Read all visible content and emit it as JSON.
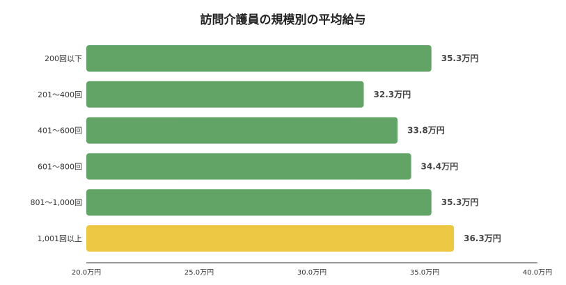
{
  "chart_data": {
    "type": "bar",
    "orientation": "horizontal",
    "title": "訪問介護員の規模別の平均給与",
    "xlabel": "",
    "ylabel": "",
    "unit": "万円",
    "categories": [
      "200回以下",
      "201～400回",
      "401～600回",
      "601～800回",
      "801～1,000回",
      "1,001回以上"
    ],
    "values": [
      35.3,
      32.3,
      33.8,
      34.4,
      35.3,
      36.3
    ],
    "value_labels": [
      "35.3万円",
      "32.3万円",
      "33.8万円",
      "34.4万円",
      "35.3万円",
      "36.3万円"
    ],
    "xlim": [
      20,
      40
    ],
    "x_ticks": [
      20,
      25,
      30,
      35,
      40
    ],
    "x_tick_labels": [
      "20.0万円",
      "25.0万円",
      "30.0万円",
      "35.0万円",
      "40.0万円"
    ],
    "grid": false,
    "legend": "none",
    "colors": {
      "default": "#62a465",
      "highlight": "#edc844"
    },
    "highlight_index": 5
  }
}
